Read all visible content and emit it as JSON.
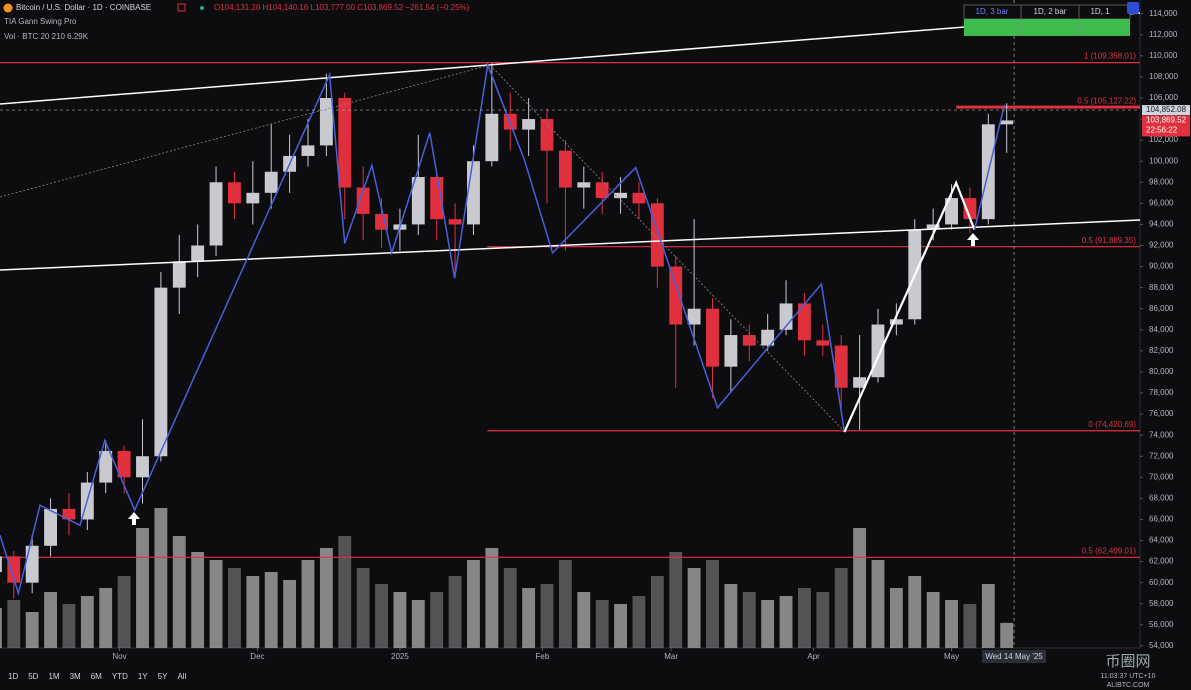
{
  "header": {
    "title": "Bitcoin / U.S. Dollar · 1D · COINBASE",
    "ohlc": "O104,131.20 H104,140.16 L103,777.00 C103,869.52 −261.54 (−0.25%)",
    "indicator": "TIA Gann Swing Pro",
    "volume_label": "Vol · BTC 20  210  6.29K"
  },
  "swing_panel": [
    "1D, 3 bar",
    "1D, 2 bar",
    "1D, 1"
  ],
  "toolbar": [
    "1D",
    "5D",
    "1M",
    "3M",
    "6M",
    "YTD",
    "1Y",
    "5Y",
    "All"
  ],
  "footer": {
    "clock": "11:03:37 UTC+10",
    "watermark": "币圈网",
    "site": "ALIBTC.COM"
  },
  "chart_data": {
    "type": "candlestick",
    "up_color": "#c8cad0",
    "down_color": "#e0303e",
    "xlim": [
      1,
      249
    ],
    "ylim": [
      53800,
      115300
    ],
    "xticks": [
      {
        "value": 27,
        "label": "Nov"
      },
      {
        "value": 57,
        "label": "Dec"
      },
      {
        "value": 88,
        "label": "2025"
      },
      {
        "value": 119,
        "label": "Feb"
      },
      {
        "value": 147,
        "label": "Mar"
      },
      {
        "value": 178,
        "label": "Apr"
      },
      {
        "value": 208,
        "label": "May"
      }
    ],
    "yticks": [
      {
        "value": 54000,
        "label": "54,000"
      },
      {
        "value": 56000,
        "label": "56,000"
      },
      {
        "value": 58000,
        "label": "58,000"
      },
      {
        "value": 60000,
        "label": "60,000"
      },
      {
        "value": 62000,
        "label": "62,000"
      },
      {
        "value": 64000,
        "label": "64,000"
      },
      {
        "value": 66000,
        "label": "66,000"
      },
      {
        "value": 68000,
        "label": "68,000"
      },
      {
        "value": 70000,
        "label": "70,000"
      },
      {
        "value": 72000,
        "label": "72,000"
      },
      {
        "value": 74000,
        "label": "74,000"
      },
      {
        "value": 76000,
        "label": "76,000"
      },
      {
        "value": 78000,
        "label": "78,000"
      },
      {
        "value": 80000,
        "label": "80,000"
      },
      {
        "value": 82000,
        "label": "82,000"
      },
      {
        "value": 84000,
        "label": "84,000"
      },
      {
        "value": 86000,
        "label": "86,000"
      },
      {
        "value": 88000,
        "label": "88,000"
      },
      {
        "value": 90000,
        "label": "90,000"
      },
      {
        "value": 92000,
        "label": "92,000"
      },
      {
        "value": 94000,
        "label": "94,000"
      },
      {
        "value": 96000,
        "label": "96,000"
      },
      {
        "value": 98000,
        "label": "98,000"
      },
      {
        "value": 100000,
        "label": "100,000"
      },
      {
        "value": 102000,
        "label": "102,000"
      },
      {
        "value": 104000,
        "label": "104,000"
      },
      {
        "value": 106000,
        "label": "106,000"
      },
      {
        "value": 108000,
        "label": "108,000"
      },
      {
        "value": 110000,
        "label": "110,000"
      },
      {
        "value": 112000,
        "label": "112,000"
      },
      {
        "value": 114000,
        "label": "114,000"
      }
    ],
    "x": [
      0,
      4,
      8,
      12,
      16,
      20,
      24,
      28,
      32,
      36,
      40,
      44,
      48,
      52,
      56,
      60,
      64,
      68,
      72,
      76,
      80,
      84,
      88,
      92,
      96,
      100,
      104,
      108,
      112,
      116,
      120,
      124,
      128,
      132,
      136,
      140,
      144,
      148,
      152,
      156,
      160,
      164,
      168,
      172,
      176,
      180,
      184,
      188,
      192,
      196,
      200,
      204,
      208,
      212,
      216,
      220
    ],
    "open": [
      61000,
      62500,
      60000,
      63500,
      67000,
      66000,
      69500,
      72500,
      70000,
      72000,
      88000,
      90500,
      92000,
      98000,
      96000,
      97000,
      99000,
      100500,
      101500,
      106000,
      97500,
      95000,
      93500,
      94000,
      98500,
      94500,
      94000,
      100000,
      104500,
      103000,
      104000,
      101000,
      97500,
      98000,
      96500,
      97000,
      96000,
      90000,
      84500,
      86000,
      80500,
      83500,
      82500,
      84000,
      86500,
      83000,
      82500,
      78500,
      79500,
      84500,
      85000,
      93500,
      94000,
      96500,
      94500,
      103500
    ],
    "high": [
      63500,
      63000,
      64500,
      68000,
      68500,
      70500,
      73500,
      73000,
      75500,
      89500,
      93000,
      94000,
      99500,
      99000,
      100000,
      103500,
      102500,
      104000,
      108300,
      106500,
      99500,
      96500,
      95500,
      102500,
      99000,
      96000,
      101500,
      109300,
      106500,
      106000,
      105000,
      102000,
      99500,
      99000,
      98500,
      98000,
      96500,
      91000,
      94500,
      87000,
      85000,
      84500,
      85500,
      88700,
      87500,
      84500,
      83500,
      83500,
      86000,
      86500,
      94500,
      95500,
      97800,
      97500,
      104500,
      105500
    ],
    "low": [
      59500,
      58500,
      59000,
      62500,
      64500,
      65000,
      68500,
      68500,
      67500,
      71500,
      85500,
      89000,
      91000,
      94500,
      94000,
      95500,
      97000,
      99500,
      100500,
      94500,
      92500,
      91800,
      91500,
      93000,
      92500,
      89300,
      93000,
      99500,
      101000,
      100500,
      96000,
      91500,
      95500,
      95000,
      95000,
      94500,
      88000,
      78500,
      82500,
      77500,
      78000,
      81000,
      82000,
      83500,
      81500,
      81500,
      76500,
      74500,
      79000,
      83500,
      84500,
      92500,
      93500,
      93200,
      94000,
      100800
    ],
    "close": [
      62500,
      60000,
      63500,
      67000,
      66000,
      69500,
      72500,
      70000,
      72000,
      88000,
      90500,
      92000,
      98000,
      96000,
      97000,
      99000,
      100500,
      101500,
      106000,
      97500,
      95000,
      93500,
      94000,
      98500,
      94500,
      94000,
      100000,
      104500,
      103000,
      104000,
      101000,
      97500,
      98000,
      96500,
      97000,
      96000,
      90000,
      84500,
      86000,
      80500,
      83500,
      82500,
      84000,
      86500,
      83000,
      82500,
      78500,
      79500,
      84500,
      85000,
      93500,
      94000,
      96500,
      94500,
      103500,
      103869.52
    ],
    "volume": {
      "color": "#9c9c9c",
      "ylim": [
        0,
        40
      ],
      "values": [
        10,
        12,
        9,
        14,
        11,
        13,
        15,
        18,
        30,
        35,
        28,
        24,
        22,
        20,
        18,
        19,
        17,
        22,
        25,
        28,
        20,
        16,
        14,
        12,
        14,
        18,
        22,
        25,
        20,
        15,
        16,
        22,
        14,
        12,
        11,
        13,
        18,
        24,
        20,
        22,
        16,
        14,
        12,
        13,
        15,
        14,
        20,
        30,
        22,
        15,
        18,
        14,
        12,
        11,
        16,
        6.29
      ]
    },
    "swings": {
      "color": "#4a5fd8",
      "x": [
        1,
        5,
        9.7,
        18.4,
        23.8,
        30.3,
        72.7,
        76,
        81.9,
        86.2,
        94.5,
        99.9,
        107.1,
        115.1,
        121.2,
        139.3,
        157.1,
        179.7,
        184.7
      ],
      "values": [
        64500,
        59000,
        67350,
        65450,
        73500,
        66900,
        108200,
        92200,
        99600,
        91300,
        102700,
        88900,
        109150,
        100100,
        91300,
        99400,
        76600,
        88350,
        74300
      ]
    },
    "active_swing": {
      "color": "#ffffff",
      "x": [
        184.7,
        209,
        213
      ],
      "values": [
        74300,
        97950,
        93500
      ]
    },
    "last_swing": {
      "color": "#4a5fd8",
      "x": [
        213,
        219.5
      ],
      "values": [
        93500,
        105350
      ]
    },
    "fib_levels": [
      {
        "value": 109358.01,
        "label": "1 (109,358.01)",
        "start": 1
      },
      {
        "value": 105127.22,
        "label": "0.5 (105,127.22)",
        "start": 209
      },
      {
        "value": 91889.35,
        "label": "0.5 (91,889.35)",
        "start": 107
      },
      {
        "value": 74420.69,
        "label": "0 (74,420.69)",
        "start": 107
      },
      {
        "value": 62409.01,
        "label": "0.5 (62,409.01)",
        "start": 1
      }
    ],
    "crosshair": {
      "x": {
        "value": 221.6,
        "label": "Wed 14 May '25"
      },
      "y": {
        "value": 104852.08,
        "label": "104,852.08"
      }
    },
    "last_price": {
      "value": 103869.52,
      "label": "103,869.52",
      "countdown": "22:56:22"
    }
  }
}
